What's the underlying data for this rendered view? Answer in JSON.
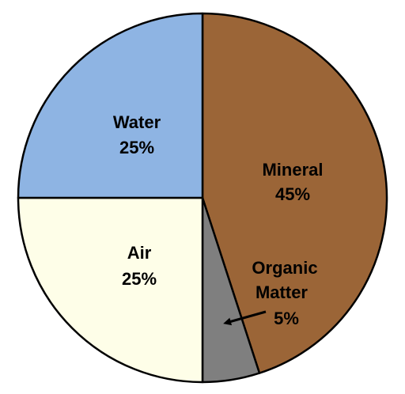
{
  "chart_data": {
    "type": "pie",
    "title": "",
    "slices": [
      {
        "label": "Mineral",
        "value": 45,
        "value_label": "45%",
        "color": "#9b6537"
      },
      {
        "label": "Organic Matter",
        "value": 5,
        "value_label": "5%",
        "color": "#7f7f7f"
      },
      {
        "label": "Air",
        "value": 25,
        "value_label": "25%",
        "color": "#fefee8"
      },
      {
        "label": "Water",
        "value": 25,
        "value_label": "25%",
        "color": "#8eb4e3"
      }
    ],
    "start": "12 o'clock",
    "direction": "clockwise",
    "slice_outline_color": "#000000",
    "organic_matter_label": {
      "line1": "Organic",
      "line2": "Matter",
      "line3": "5%"
    },
    "annotation": "arrow from Organic Matter label to its slice"
  }
}
